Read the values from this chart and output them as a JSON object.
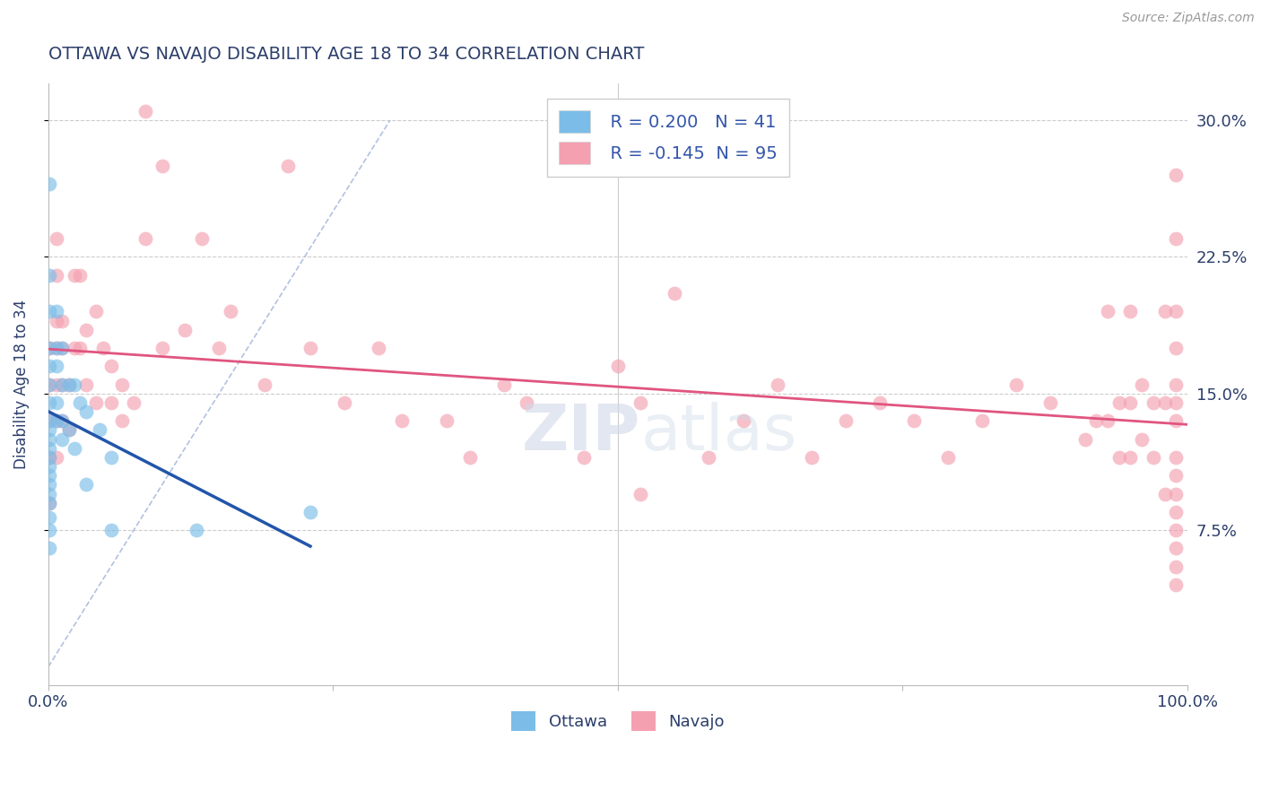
{
  "title": "OTTAWA VS NAVAJO DISABILITY AGE 18 TO 34 CORRELATION CHART",
  "source_text": "Source: ZipAtlas.com",
  "ylabel": "Disability Age 18 to 34",
  "xlim": [
    0.0,
    1.0
  ],
  "ylim": [
    -0.01,
    0.32
  ],
  "color_ottawa": "#7bbde8",
  "color_navajo": "#f4a0b0",
  "color_blue_line": "#2255aa",
  "color_pink_line": "#e05580",
  "color_diag_line": "#aabbdd",
  "background_color": "#ffffff",
  "grid_color": "#cccccc",
  "title_color": "#2c3e6b",
  "axis_color": "#2c3e6b",
  "source_color": "#999999",
  "legend_text_color": "#3355aa",
  "ottawa_x": [
    0.001,
    0.001,
    0.001,
    0.001,
    0.001,
    0.001,
    0.001,
    0.001,
    0.001,
    0.001,
    0.001,
    0.001,
    0.001,
    0.001,
    0.001,
    0.001,
    0.001,
    0.001,
    0.001,
    0.001,
    0.007,
    0.007,
    0.007,
    0.007,
    0.007,
    0.012,
    0.012,
    0.012,
    0.012,
    0.018,
    0.018,
    0.023,
    0.023,
    0.028,
    0.033,
    0.033,
    0.045,
    0.055,
    0.055,
    0.13,
    0.23
  ],
  "ottawa_y": [
    0.265,
    0.215,
    0.195,
    0.175,
    0.165,
    0.155,
    0.145,
    0.135,
    0.13,
    0.125,
    0.12,
    0.115,
    0.11,
    0.105,
    0.1,
    0.095,
    0.09,
    0.082,
    0.075,
    0.065,
    0.195,
    0.175,
    0.165,
    0.145,
    0.135,
    0.175,
    0.155,
    0.135,
    0.125,
    0.155,
    0.13,
    0.155,
    0.12,
    0.145,
    0.14,
    0.1,
    0.13,
    0.115,
    0.075,
    0.075,
    0.085
  ],
  "navajo_x": [
    0.001,
    0.001,
    0.001,
    0.001,
    0.001,
    0.007,
    0.007,
    0.007,
    0.007,
    0.007,
    0.007,
    0.007,
    0.012,
    0.012,
    0.012,
    0.012,
    0.018,
    0.018,
    0.023,
    0.023,
    0.028,
    0.028,
    0.033,
    0.033,
    0.042,
    0.042,
    0.048,
    0.055,
    0.055,
    0.065,
    0.065,
    0.075,
    0.085,
    0.085,
    0.1,
    0.1,
    0.12,
    0.135,
    0.15,
    0.16,
    0.19,
    0.21,
    0.23,
    0.26,
    0.29,
    0.31,
    0.35,
    0.37,
    0.4,
    0.42,
    0.47,
    0.5,
    0.52,
    0.52,
    0.55,
    0.58,
    0.61,
    0.64,
    0.67,
    0.7,
    0.73,
    0.76,
    0.79,
    0.82,
    0.85,
    0.88,
    0.91,
    0.92,
    0.93,
    0.93,
    0.94,
    0.94,
    0.95,
    0.95,
    0.95,
    0.96,
    0.96,
    0.97,
    0.97,
    0.98,
    0.98,
    0.98,
    0.99,
    0.99,
    0.99,
    0.99,
    0.99,
    0.99,
    0.99,
    0.99,
    0.99,
    0.99,
    0.99,
    0.99,
    0.99,
    0.99,
    0.99
  ],
  "navajo_y": [
    0.175,
    0.155,
    0.135,
    0.115,
    0.09,
    0.235,
    0.215,
    0.19,
    0.175,
    0.155,
    0.135,
    0.115,
    0.19,
    0.175,
    0.155,
    0.135,
    0.155,
    0.13,
    0.215,
    0.175,
    0.215,
    0.175,
    0.185,
    0.155,
    0.195,
    0.145,
    0.175,
    0.165,
    0.145,
    0.155,
    0.135,
    0.145,
    0.305,
    0.235,
    0.275,
    0.175,
    0.185,
    0.235,
    0.175,
    0.195,
    0.155,
    0.275,
    0.175,
    0.145,
    0.175,
    0.135,
    0.135,
    0.115,
    0.155,
    0.145,
    0.115,
    0.165,
    0.145,
    0.095,
    0.205,
    0.115,
    0.135,
    0.155,
    0.115,
    0.135,
    0.145,
    0.135,
    0.115,
    0.135,
    0.155,
    0.145,
    0.125,
    0.135,
    0.195,
    0.135,
    0.145,
    0.115,
    0.195,
    0.145,
    0.115,
    0.155,
    0.125,
    0.145,
    0.115,
    0.195,
    0.145,
    0.095,
    0.27,
    0.235,
    0.195,
    0.175,
    0.155,
    0.145,
    0.135,
    0.115,
    0.105,
    0.095,
    0.085,
    0.075,
    0.065,
    0.055,
    0.045
  ]
}
